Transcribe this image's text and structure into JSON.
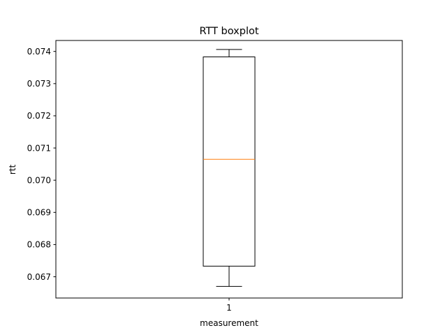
{
  "chart_data": {
    "type": "boxplot",
    "title": "RTT boxplot",
    "xlabel": "measurement",
    "ylabel": "rtt",
    "ylim": [
      0.06634,
      0.07434
    ],
    "yticks": [
      0.067,
      0.068,
      0.069,
      0.07,
      0.071,
      0.072,
      0.073,
      0.074
    ],
    "ytick_labels": [
      "0.067",
      "0.068",
      "0.069",
      "0.070",
      "0.071",
      "0.072",
      "0.073",
      "0.074"
    ],
    "categories": [
      "1"
    ],
    "boxes": [
      {
        "category": "1",
        "whisker_low": 0.0667,
        "q1": 0.06733,
        "median": 0.07065,
        "q3": 0.07383,
        "whisker_high": 0.07406
      }
    ],
    "grid": false,
    "colors": {
      "box": "#000000",
      "median": "#ff7f0e",
      "axes": "#000000"
    }
  }
}
